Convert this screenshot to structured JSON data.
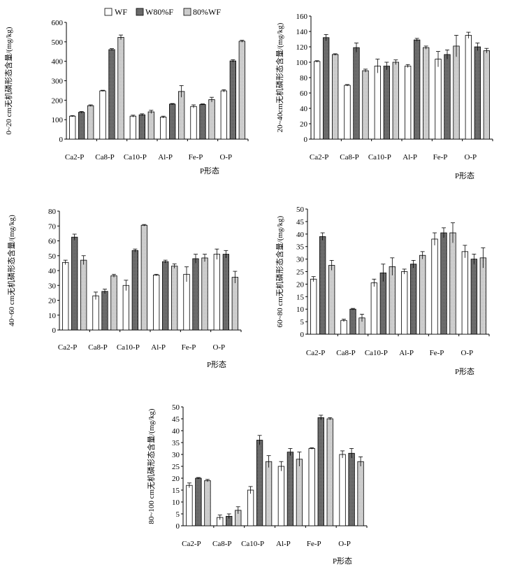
{
  "legend": {
    "labels": [
      "WF",
      "W80%F",
      "80%WF"
    ]
  },
  "colors": {
    "WF": "#ffffff",
    "W80%F": "#777777",
    "80%WF": "#c8c8c8"
  },
  "chart_data": [
    {
      "type": "bar",
      "ylabel": "0~20 cm无机磷形态含量/(mg/kg)",
      "xlabel": "P形态",
      "categories": [
        "Ca2-P",
        "Ca8-P",
        "Ca10-P",
        "Al-P",
        "Fe-P",
        "O-P"
      ],
      "ylim": [
        0,
        600
      ],
      "yticks": [
        0,
        100,
        200,
        300,
        400,
        500,
        600
      ],
      "series": [
        {
          "name": "WF",
          "values": [
            118,
            248,
            118,
            113,
            168,
            248
          ],
          "errors": [
            3,
            3,
            5,
            5,
            8,
            6
          ]
        },
        {
          "name": "W80%F",
          "values": [
            138,
            460,
            125,
            180,
            178,
            402
          ],
          "errors": [
            4,
            5,
            5,
            3,
            3,
            6
          ]
        },
        {
          "name": "80%WF",
          "values": [
            172,
            523,
            140,
            245,
            203,
            503
          ],
          "errors": [
            4,
            12,
            8,
            30,
            12,
            5
          ]
        }
      ]
    },
    {
      "type": "bar",
      "ylabel": "20~40cm无机磷形态含量/(mg/kg)",
      "xlabel": "P形态",
      "categories": [
        "Ca2-P",
        "Ca8-P",
        "Ca10-P",
        "Al-P",
        "Fe-P",
        "O-P"
      ],
      "ylim": [
        0,
        160
      ],
      "yticks": [
        0,
        20,
        40,
        60,
        80,
        100,
        120,
        140,
        160
      ],
      "series": [
        {
          "name": "WF",
          "values": [
            101,
            70,
            95,
            95,
            104,
            135
          ],
          "errors": [
            1,
            1,
            9,
            2,
            10,
            4
          ]
        },
        {
          "name": "W80%F",
          "values": [
            132,
            119,
            95,
            129,
            110,
            120
          ],
          "errors": [
            4,
            6,
            5,
            2,
            6,
            5
          ]
        },
        {
          "name": "80%WF",
          "values": [
            110,
            89,
            100,
            119,
            121,
            115
          ],
          "errors": [
            1,
            2,
            3,
            2,
            14,
            3
          ]
        }
      ]
    },
    {
      "type": "bar",
      "ylabel": "40~60 cm无机磷形态含量/(mg/kg)",
      "xlabel": "P形态",
      "categories": [
        "Ca2-P",
        "Ca8-P",
        "Ca10-P",
        "Al-P",
        "Fe-P",
        "O-P"
      ],
      "ylim": [
        0,
        80
      ],
      "yticks": [
        0,
        10,
        20,
        30,
        40,
        50,
        60,
        70,
        80
      ],
      "series": [
        {
          "name": "WF",
          "values": [
            45.5,
            23,
            30,
            37,
            37.5,
            51
          ],
          "errors": [
            1.5,
            2.5,
            3.5,
            0.5,
            5,
            3.5
          ]
        },
        {
          "name": "W80%F",
          "values": [
            62.5,
            26,
            53.5,
            46,
            48,
            51
          ],
          "errors": [
            2,
            1.5,
            1,
            1,
            3,
            2.5
          ]
        },
        {
          "name": "80%WF",
          "values": [
            47,
            36.5,
            70.5,
            43,
            48.5,
            35.5
          ],
          "errors": [
            3,
            1,
            0.5,
            1.5,
            2.5,
            4
          ]
        }
      ]
    },
    {
      "type": "bar",
      "ylabel": "60~80 cm无机磷形态含量/(mg/kg)",
      "xlabel": "P形态",
      "categories": [
        "Ca2-P",
        "Ca8-P",
        "Ca10-P",
        "Al-P",
        "Fe-P",
        "O-P"
      ],
      "ylim": [
        0,
        50
      ],
      "yticks": [
        0,
        5,
        10,
        15,
        20,
        25,
        30,
        35,
        40,
        45,
        50
      ],
      "series": [
        {
          "name": "WF",
          "values": [
            22,
            5.5,
            20.5,
            25,
            38,
            33
          ],
          "errors": [
            1,
            0.5,
            1.5,
            1,
            2.5,
            2.5
          ]
        },
        {
          "name": "W80%F",
          "values": [
            39,
            10,
            24.5,
            28,
            40.5,
            30
          ],
          "errors": [
            1.5,
            0.3,
            3.5,
            1.5,
            2,
            2
          ]
        },
        {
          "name": "80%WF",
          "values": [
            27.5,
            6.5,
            27,
            31.5,
            40.5,
            30.5
          ],
          "errors": [
            2,
            1.5,
            3.5,
            1.5,
            4,
            4
          ]
        }
      ]
    },
    {
      "type": "bar",
      "ylabel": "80~100 cm无机磷形态含量/(mg/kg)",
      "xlabel": "P形态",
      "categories": [
        "Ca2-P",
        "Ca8-P",
        "Ca10-P",
        "Al-P",
        "Fe-P",
        "O-P"
      ],
      "ylim": [
        0,
        50
      ],
      "yticks": [
        0,
        5,
        10,
        15,
        20,
        25,
        30,
        35,
        40,
        45,
        50
      ],
      "series": [
        {
          "name": "WF",
          "values": [
            17,
            3.5,
            15,
            25,
            32.5,
            30
          ],
          "errors": [
            1,
            1,
            1.5,
            2,
            0.3,
            1.5
          ]
        },
        {
          "name": "W80%F",
          "values": [
            20,
            4,
            36,
            31,
            45.5,
            30.5
          ],
          "errors": [
            0.3,
            1,
            2,
            1.5,
            1,
            2
          ]
        },
        {
          "name": "80%WF",
          "values": [
            19,
            6.5,
            27,
            28,
            45,
            27
          ],
          "errors": [
            0.5,
            1.5,
            2.5,
            3,
            0.5,
            2
          ]
        }
      ]
    }
  ]
}
